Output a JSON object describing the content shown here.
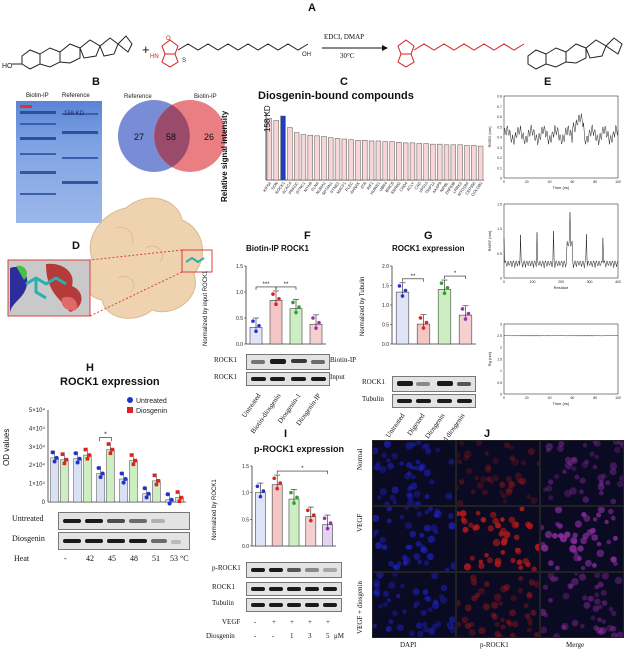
{
  "panels": {
    "A": "A",
    "B": "B",
    "C": "C",
    "D": "D",
    "E": "E",
    "F": "F",
    "G": "G",
    "H": "H",
    "I": "I",
    "J": "J"
  },
  "panelA": {
    "reagents": "EDCI, DMAP",
    "temperature": "30°C"
  },
  "panelB": {
    "gel_lanes": [
      "Biotin-IP",
      "Reference"
    ],
    "marker": "158 KD",
    "venn": {
      "sets": [
        "Reference",
        "Biotin-IP"
      ],
      "left_only": 27,
      "both": 58,
      "right_only": 26
    }
  },
  "panelC": {
    "chart_data": {
      "type": "bar",
      "title": "Diosgenin-bound compounds",
      "ylabel": "Relative signal intensity",
      "annotation": "158 KD",
      "highlight_index": 2,
      "categories": [
        "KIF5A",
        "SON",
        "ROCK1",
        "ACACA",
        "PRKDC",
        "DYNC1",
        "MYH9",
        "FLNA",
        "NUMA1",
        "SPTAN1",
        "SYNE2",
        "MACF1",
        "PLEC",
        "AHNAK",
        "ATR",
        "RIF1",
        "HUWE1",
        "UBR4",
        "BIRC6",
        "SRRM2",
        "CHD4",
        "ACLY",
        "CAD",
        "VPS13",
        "TRIP12",
        "AKAP9",
        "NIPBL",
        "ZNF638",
        "LRRK2",
        "MYO18A",
        "CEP350",
        "GOLGB1"
      ],
      "values": [
        0.96,
        0.93,
        1.0,
        0.82,
        0.74,
        0.71,
        0.7,
        0.69,
        0.68,
        0.66,
        0.65,
        0.64,
        0.63,
        0.62,
        0.62,
        0.61,
        0.61,
        0.6,
        0.6,
        0.59,
        0.58,
        0.58,
        0.57,
        0.57,
        0.56,
        0.56,
        0.55,
        0.55,
        0.55,
        0.54,
        0.54,
        0.53
      ]
    }
  },
  "panelE": {
    "plots": [
      {
        "ylabel": "RMSD (nm)",
        "xlabel": "Time (ns)",
        "xticks": [
          "0",
          "20",
          "40",
          "60",
          "80",
          "100"
        ],
        "yticks": [
          "0.8",
          "0.7",
          "0.6",
          "0.5",
          "0.4",
          "0.3",
          "0.2",
          "0.1",
          "0"
        ]
      },
      {
        "ylabel": "RMSF (nm)",
        "xlabel": "Residue",
        "xticks": [
          "0",
          "100",
          "200",
          "300",
          "400"
        ],
        "yticks": [
          "1.5",
          "1.0",
          "0.5",
          "0"
        ]
      },
      {
        "ylabel": "Rg (nm)",
        "xlabel": "Time (ns)",
        "xticks": [
          "0",
          "20",
          "40",
          "60",
          "80",
          "100"
        ],
        "yticks": [
          "3",
          "2.5",
          "2",
          "1.5",
          "1",
          "0.5",
          "0"
        ]
      }
    ]
  },
  "panelF": {
    "chart_data": {
      "type": "bar",
      "title": "Biotin-IP ROCK1",
      "ylabel": "Normalized by input ROCK1",
      "ylim": [
        0,
        1.5
      ],
      "yticks": [
        "1.5",
        "1.0",
        "0.5",
        "0.0"
      ],
      "categories": [
        "Untreated",
        "Biotin-diosgenin",
        "Diosgenin-1",
        "Diosgenin-IP"
      ],
      "values": [
        0.32,
        0.84,
        0.68,
        0.38
      ],
      "significance": [
        "***",
        "**"
      ]
    },
    "blot_rows": [
      "ROCK1",
      "ROCK1"
    ],
    "blot_right": [
      "Biotin-IP",
      "Input"
    ]
  },
  "panelG": {
    "chart_data": {
      "type": "bar",
      "title": "ROCK1 expression",
      "ylabel": "Normalized by Tubulin",
      "ylim": [
        0,
        2.0
      ],
      "yticks": [
        "2.0",
        "1.5",
        "1.0",
        "0.5",
        "0.0"
      ],
      "categories": [
        "Untreated",
        "Digested",
        "Diosgenin",
        "Digested diosgenin"
      ],
      "values": [
        1.33,
        0.51,
        1.4,
        0.74
      ],
      "significance": [
        "**",
        "*"
      ]
    },
    "blot_rows": [
      "ROCK1",
      "Tubulin"
    ]
  },
  "panelH": {
    "chart_data": {
      "type": "bar",
      "title": "ROCK1 expression",
      "ylabel": "OD values",
      "ylim": [
        0,
        50000
      ],
      "yticks": [
        "5×10⁴",
        "4×10⁴",
        "3×10⁴",
        "2×10⁴",
        "1×10⁴",
        "0"
      ],
      "categories": [
        "-",
        "42",
        "45",
        "48",
        "51",
        "53"
      ],
      "series": [
        {
          "name": "Untreated",
          "values": [
            24000,
            23500,
            15500,
            12500,
            4500,
            1200
          ]
        },
        {
          "name": "Diosgenin",
          "values": [
            23000,
            25500,
            28500,
            22500,
            11500,
            2400
          ]
        }
      ],
      "significance": "*"
    },
    "blot_rows": [
      "Untreated",
      "Diosgenin"
    ],
    "heat_label": "Heat",
    "heat_values": [
      "-",
      "42",
      "45",
      "48",
      "51",
      "53 °C"
    ]
  },
  "panelI": {
    "chart_data": {
      "type": "bar",
      "title": "p-ROCK1 expression",
      "ylabel": "Normalized by ROCK1",
      "ylim": [
        0,
        1.5
      ],
      "yticks": [
        "1.5",
        "1.0",
        "0.5",
        "0.0"
      ],
      "categories": [
        "1",
        "2",
        "3",
        "4",
        "5"
      ],
      "values": [
        1.0,
        1.15,
        0.88,
        0.55,
        0.4
      ],
      "significance": "*"
    },
    "blot_rows": [
      "p-ROCK1",
      "ROCK1",
      "Tubulin"
    ],
    "treatment": {
      "vegf_label": "VEGF",
      "vegf": [
        "-",
        "+",
        "+",
        "+",
        "+"
      ],
      "diosgenin_label": "Diosgenin",
      "diosgenin": [
        "-",
        "-",
        "1",
        "3",
        "5"
      ],
      "unit": "μM"
    }
  },
  "panelJ": {
    "rows": [
      "Normal",
      "VEGF",
      "VEGF + diosgenin"
    ],
    "cols": [
      "DAPI",
      "p-ROCK1",
      "Merge"
    ],
    "colors": {
      "dapi": "#1f23c7",
      "prock": "#b51a1a",
      "merge": "#8a2c9e",
      "background": "#0a0a22"
    }
  },
  "colors": {
    "pink_bar": "#f6d6d6",
    "highlight_bar": "#1f3fbf",
    "green_bar": "#c9f0c0",
    "blue_point": "#2233cc",
    "red_point": "#dd2222",
    "venn_left": "#6a7fd2",
    "venn_right": "#e5686d",
    "venn_overlap": "#9a4a6a"
  }
}
